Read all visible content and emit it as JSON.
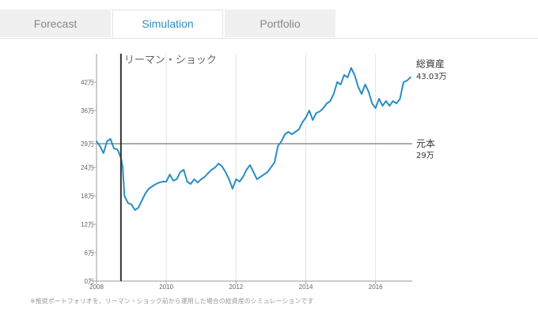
{
  "tabs": [
    {
      "label": "Forecast",
      "active": false
    },
    {
      "label": "Simulation",
      "active": true
    },
    {
      "label": "Portfolio",
      "active": false
    }
  ],
  "colors": {
    "accent": "#2a8fc0",
    "series": "#2a8fc0",
    "baseline": "#aaaaaa",
    "event_line": "#333333"
  },
  "chart_data": {
    "type": "line",
    "title": "",
    "xlabel": "",
    "ylabel": "",
    "xlim": [
      2008.0,
      2017.05
    ],
    "ylim": [
      0,
      48
    ],
    "x_ticks": [
      2008,
      2010,
      2012,
      2014,
      2016
    ],
    "y_ticks": [
      {
        "value": 0,
        "label": "0万"
      },
      {
        "value": 6,
        "label": "6万"
      },
      {
        "value": 12,
        "label": "12万"
      },
      {
        "value": 18,
        "label": "18万"
      },
      {
        "value": 24,
        "label": "24万"
      },
      {
        "value": 29,
        "label": "29万"
      },
      {
        "value": 36,
        "label": "36万"
      },
      {
        "value": 42,
        "label": "42万"
      }
    ],
    "grid": "vertical",
    "event": {
      "x": 2008.7,
      "label": "リーマン・ショック"
    },
    "baseline": {
      "value": 29,
      "name": "元本",
      "value_label": "29万"
    },
    "series": [
      {
        "name": "総資産",
        "end_label": "43.03万",
        "x": [
          2008.0,
          2008.1,
          2008.2,
          2008.3,
          2008.4,
          2008.5,
          2008.6,
          2008.7,
          2008.75,
          2008.8,
          2008.9,
          2009.0,
          2009.1,
          2009.2,
          2009.3,
          2009.4,
          2009.5,
          2009.6,
          2009.7,
          2009.8,
          2009.9,
          2010.0,
          2010.1,
          2010.2,
          2010.3,
          2010.4,
          2010.5,
          2010.6,
          2010.7,
          2010.8,
          2010.9,
          2011.0,
          2011.1,
          2011.2,
          2011.3,
          2011.4,
          2011.5,
          2011.6,
          2011.7,
          2011.8,
          2011.9,
          2012.0,
          2012.1,
          2012.2,
          2012.3,
          2012.4,
          2012.5,
          2012.6,
          2012.7,
          2012.8,
          2012.9,
          2013.0,
          2013.1,
          2013.2,
          2013.3,
          2013.4,
          2013.5,
          2013.6,
          2013.7,
          2013.8,
          2013.9,
          2014.0,
          2014.1,
          2014.2,
          2014.3,
          2014.4,
          2014.5,
          2014.6,
          2014.7,
          2014.8,
          2014.9,
          2015.0,
          2015.1,
          2015.2,
          2015.3,
          2015.4,
          2015.5,
          2015.6,
          2015.7,
          2015.8,
          2015.9,
          2016.0,
          2016.1,
          2016.2,
          2016.3,
          2016.4,
          2016.5,
          2016.6,
          2016.7,
          2016.8,
          2016.9,
          2017.0
        ],
        "values": [
          29.5,
          28.5,
          27.0,
          29.5,
          30.0,
          28.0,
          27.8,
          26.0,
          24.0,
          18.0,
          16.5,
          16.2,
          15.0,
          15.5,
          17.0,
          18.5,
          19.5,
          20.0,
          20.5,
          20.8,
          21.0,
          21.0,
          22.5,
          21.2,
          21.5,
          23.0,
          23.5,
          21.0,
          20.5,
          21.5,
          20.8,
          21.5,
          22.0,
          22.8,
          23.5,
          24.0,
          24.8,
          24.2,
          23.0,
          21.5,
          19.5,
          21.5,
          21.0,
          22.0,
          23.5,
          24.5,
          23.0,
          21.5,
          22.0,
          22.5,
          23.0,
          24.0,
          25.0,
          28.5,
          29.5,
          31.0,
          31.5,
          31.0,
          31.5,
          32.0,
          33.5,
          34.5,
          36.0,
          34.0,
          35.5,
          35.8,
          36.5,
          37.5,
          38.0,
          39.5,
          42.0,
          41.5,
          43.5,
          43.0,
          45.0,
          43.5,
          41.0,
          39.5,
          41.5,
          40.0,
          37.5,
          36.5,
          38.5,
          37.0,
          38.0,
          37.0,
          38.0,
          37.5,
          38.5,
          42.0,
          42.3,
          43.03
        ]
      }
    ]
  },
  "footnote": "※推奨ポートフォリオを、リーマン・ショック前から運用した場合の総資産のシミュレーションです"
}
